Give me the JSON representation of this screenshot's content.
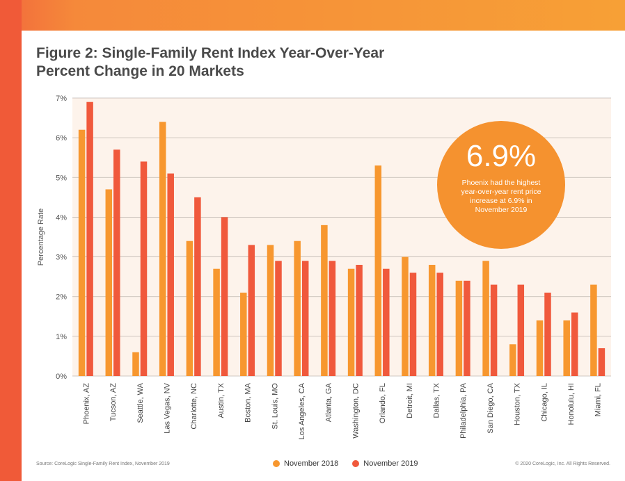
{
  "header": {
    "title_line1": "Figure 2: Single-Family Rent Index Year-Over-Year",
    "title_line2": "Percent Change in 20 Markets"
  },
  "callout": {
    "value": "6.9%",
    "text": "Phoenix had the highest year-over-year rent price increase at 6.9% in November 2019"
  },
  "footer": {
    "source": "Source: CoreLogic Single-Family Rent Index, November 2019",
    "copyright": "© 2020 CoreLogic, Inc. All Rights Reserved."
  },
  "colors": {
    "nov2018": "#f7972f",
    "nov2019": "#f0593c",
    "plot_bg": "#fdf3eb",
    "grid": "#bfb7b0"
  },
  "chart_data": {
    "type": "bar",
    "ylabel": "Percentage Rate",
    "ylim": [
      0,
      7
    ],
    "yticks": [
      "0%",
      "1%",
      "2%",
      "3%",
      "4%",
      "5%",
      "6%",
      "7%"
    ],
    "grid": true,
    "legend_position": "bottom-center",
    "categories": [
      "Phoenix, AZ",
      "Tucson, AZ",
      "Seattle, WA",
      "Las Vegas, NV",
      "Charlotte, NC",
      "Austin, TX",
      "Boston, MA",
      "St. Louis, MO",
      "Los Angeles, CA",
      "Atlanta, GA",
      "Washington, DC",
      "Orlando, FL",
      "Detroit, MI",
      "Dallas, TX",
      "Philadelphia, PA",
      "San Diego, CA",
      "Houston, TX",
      "Chicago, IL",
      "Honolulu, HI",
      "Miami, FL"
    ],
    "series": [
      {
        "name": "November 2018",
        "values": [
          6.2,
          4.7,
          0.6,
          6.4,
          3.4,
          2.7,
          2.1,
          3.3,
          3.4,
          3.8,
          2.7,
          5.3,
          3.0,
          2.8,
          2.4,
          2.9,
          0.8,
          1.4,
          1.4,
          2.3
        ]
      },
      {
        "name": "November 2019",
        "values": [
          6.9,
          5.7,
          5.4,
          5.1,
          4.5,
          4.0,
          3.3,
          2.9,
          2.9,
          2.9,
          2.8,
          2.7,
          2.6,
          2.6,
          2.4,
          2.3,
          2.3,
          2.1,
          1.6,
          0.7
        ]
      }
    ]
  }
}
